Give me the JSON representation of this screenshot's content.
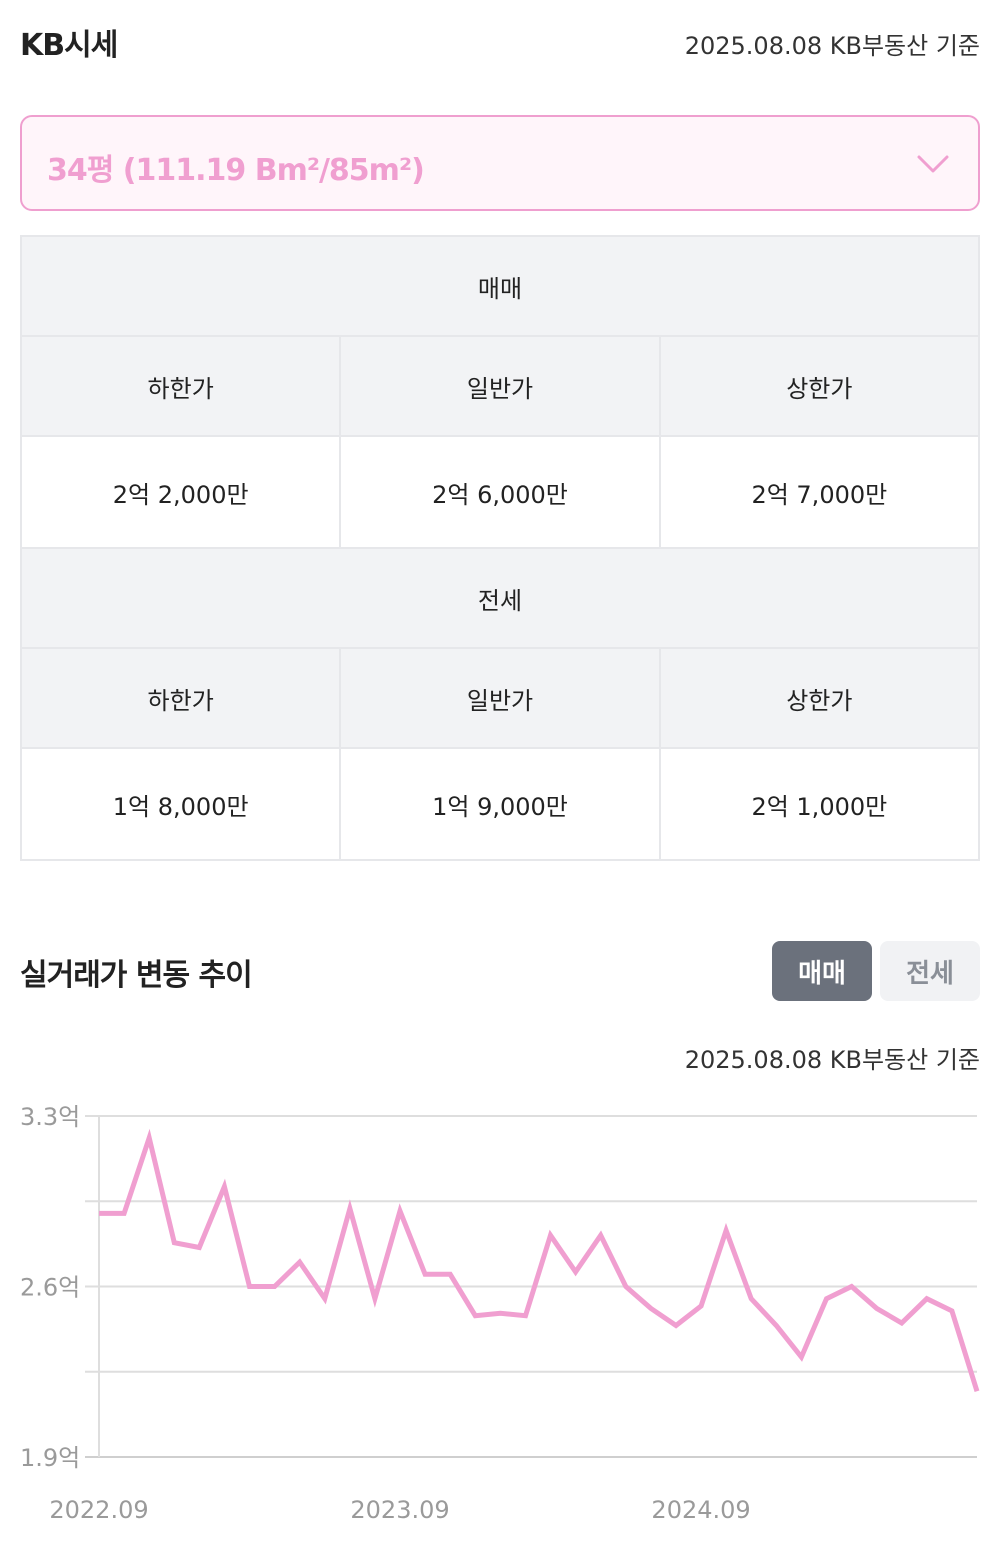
{
  "header": {
    "title": "KB시세",
    "date": "2025.08.08 KB부동산 기준"
  },
  "area_select": {
    "value": "34평 (111.19 Bm²/85m²)",
    "icon": "chevron-down-icon"
  },
  "price_table": {
    "sale": {
      "title": "매매",
      "columns": [
        "하한가",
        "일반가",
        "상한가"
      ],
      "values": [
        "2억 2,000만",
        "2억 6,000만",
        "2억 7,000만"
      ]
    },
    "jeonse": {
      "title": "전세",
      "columns": [
        "하한가",
        "일반가",
        "상한가"
      ],
      "values": [
        "1억 8,000만",
        "1억 9,000만",
        "2억 1,000만"
      ]
    }
  },
  "trend": {
    "title": "실거래가 변동 추이",
    "toggles": [
      {
        "label": "매매",
        "active": true
      },
      {
        "label": "전세",
        "active": false
      }
    ],
    "date": "2025.08.08 KB부동산 기준"
  },
  "colors": {
    "accent": "#f09fd0",
    "toggle_active": "#6b717c",
    "grid": "#d9d9d9"
  },
  "chart_data": {
    "type": "line",
    "y_ticks": [
      "3.3억",
      "2.6억",
      "1.9억"
    ],
    "x_ticks": [
      "2022.09",
      "2023.09",
      "2024.09"
    ],
    "x_tick_index": [
      0,
      12,
      24
    ],
    "ylim": [
      1.9,
      3.3
    ],
    "grid": true,
    "series": [
      {
        "color": "#f09fd0",
        "values": [
          2.9,
          2.9,
          3.21,
          2.78,
          2.76,
          3.01,
          2.6,
          2.6,
          2.7,
          2.55,
          2.92,
          2.55,
          2.91,
          2.65,
          2.65,
          2.48,
          2.49,
          2.48,
          2.81,
          2.66,
          2.81,
          2.6,
          2.51,
          2.44,
          2.52,
          2.83,
          2.55,
          2.44,
          2.31,
          2.55,
          2.6,
          2.51,
          2.45,
          2.55,
          2.5,
          2.17
        ]
      }
    ]
  }
}
